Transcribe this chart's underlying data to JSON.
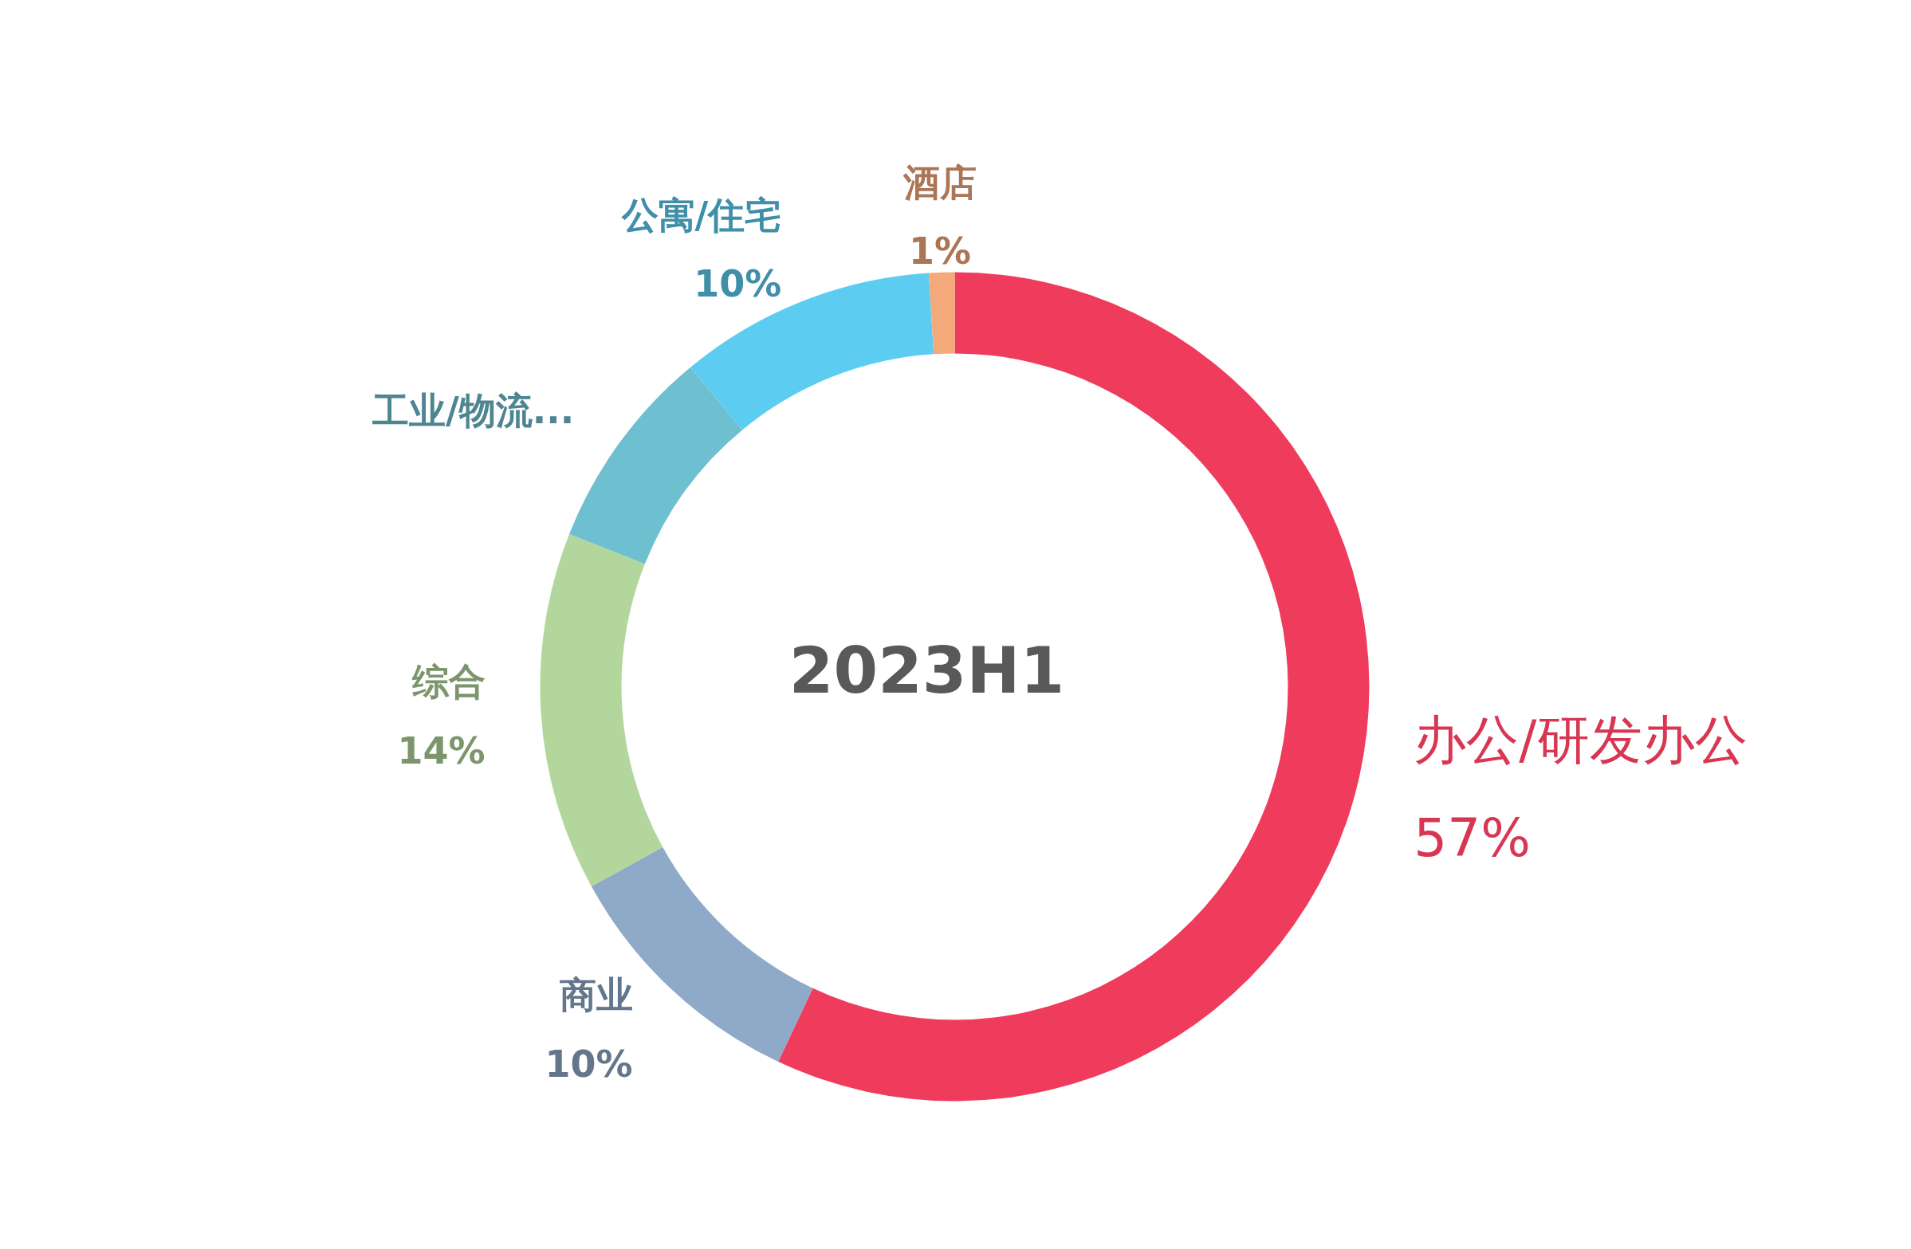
{
  "chart_data": {
    "type": "donut",
    "title": "2023H1",
    "categories": [
      "办公/研发办公",
      "商业",
      "综合",
      "工业/物流...",
      "公寓/住宅",
      "酒店"
    ],
    "values": [
      57,
      10,
      14,
      8,
      10,
      1
    ],
    "value_labels": [
      "57%",
      "10%",
      "14%",
      null,
      "10%",
      "1%"
    ],
    "colors": [
      "#f03c5c",
      "#8fa9c8",
      "#b3d69c",
      "#6ebfd0",
      "#5ccdf0",
      "#f4a97a"
    ]
  }
}
